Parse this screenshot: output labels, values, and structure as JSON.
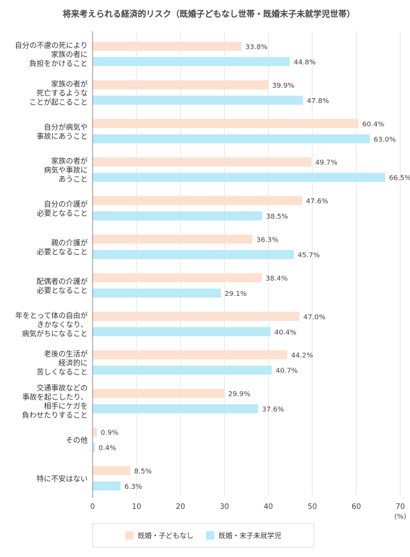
{
  "chart_data": {
    "type": "bar",
    "orientation": "horizontal",
    "title": "将来考えられる経済的リスク（既婚子どもなし世帯・既婚末子未就学児世帯）",
    "categories": [
      [
        "自分の不慮の死により",
        "家族の者に",
        "負担をかけること"
      ],
      [
        "家族の者が",
        "死亡するような",
        "ことが起こること"
      ],
      [
        "自分が病気や",
        "事故にあうこと"
      ],
      [
        "家族の者が",
        "病気や事故に",
        "あうこと"
      ],
      [
        "自分の介護が",
        "必要となること"
      ],
      [
        "親の介護が",
        "必要となること"
      ],
      [
        "配偶者の介護が",
        "必要となること"
      ],
      [
        "年をとって体の自由が",
        "きかなくなり、",
        "病気がちになること"
      ],
      [
        "老後の生活が",
        "経済的に",
        "苦しくなること"
      ],
      [
        "交通事故などの",
        "事故を起こしたり、",
        "相手にケガを",
        "負わせたりすること"
      ],
      [
        "その他"
      ],
      [
        "特に不安はない"
      ]
    ],
    "series": [
      {
        "name": "既婚・子どもなし",
        "color": "#fde0cf",
        "values": [
          33.8,
          39.9,
          60.4,
          49.7,
          47.6,
          36.3,
          38.4,
          47.0,
          44.2,
          29.9,
          0.9,
          8.5
        ],
        "labels": [
          "33.8%",
          "39.9%",
          "60.4%",
          "49.7%",
          "47.6%",
          "36.3%",
          "38.4%",
          "47.0%",
          "44.2%",
          "29.9%",
          "0.9%",
          "8.5%"
        ]
      },
      {
        "name": "既婚・末子未就学児",
        "color": "#b8eaf8",
        "values": [
          44.8,
          47.8,
          63.0,
          66.5,
          38.5,
          45.7,
          29.1,
          40.4,
          40.7,
          37.6,
          0.4,
          6.3
        ],
        "labels": [
          "44.8%",
          "47.8%",
          "63.0%",
          "66.5%",
          "38.5%",
          "45.7%",
          "29.1%",
          "40.4%",
          "40.7%",
          "37.6%",
          "0.4%",
          "6.3%"
        ]
      }
    ],
    "xlim": [
      0,
      70
    ],
    "xticks": [
      "0",
      "10",
      "20",
      "30",
      "40",
      "50",
      "60",
      "70"
    ],
    "xunit": "(%)",
    "grid": true,
    "legend_position": "bottom"
  }
}
